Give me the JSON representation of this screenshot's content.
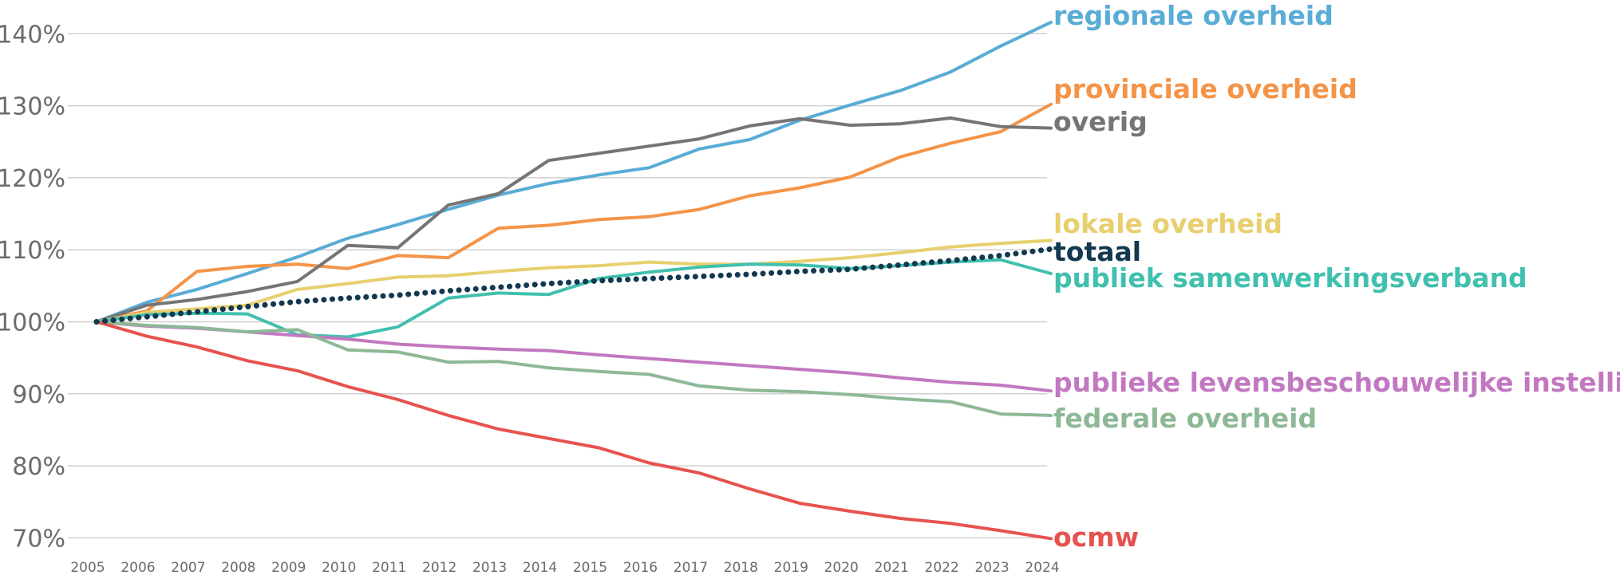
{
  "chart_data": {
    "type": "line",
    "title": "",
    "xlabel": "",
    "ylabel": "",
    "ylim": [
      70,
      140
    ],
    "yticks": [
      {
        "value": 70,
        "label": "70%"
      },
      {
        "value": 80,
        "label": "80%"
      },
      {
        "value": 90,
        "label": "90%"
      },
      {
        "value": 100,
        "label": "100%"
      },
      {
        "value": 110,
        "label": "110%"
      },
      {
        "value": 120,
        "label": "120%"
      },
      {
        "value": 130,
        "label": "130%"
      },
      {
        "value": 140,
        "label": "140%"
      }
    ],
    "xticks": [
      "2005",
      "2006",
      "2007",
      "2008",
      "2009",
      "2010",
      "2011",
      "2012",
      "2013",
      "2014",
      "2015",
      "2016",
      "2017",
      "2018",
      "2019",
      "2020",
      "2021",
      "2022",
      "2023",
      "2024"
    ],
    "series": [
      {
        "name": "regionale overheid",
        "color": "#58acd5",
        "dotted": false,
        "values": [
          100,
          102.7,
          104.5,
          106.7,
          109,
          111.6,
          113.5,
          115.6,
          117.6,
          119.2,
          120.4,
          121.4,
          124,
          125.3,
          128,
          130.1,
          132.1,
          134.7,
          138.3,
          141.6
        ]
      },
      {
        "name": "provinciale overheid",
        "color": "#f49448",
        "dotted": false,
        "values": [
          100,
          101.5,
          107,
          107.7,
          108,
          107.4,
          109.2,
          108.9,
          113,
          113.4,
          114.2,
          114.6,
          115.6,
          117.5,
          118.6,
          120.1,
          122.9,
          124.8,
          126.4,
          130.2
        ]
      },
      {
        "name": "overig",
        "color": "#757575",
        "dotted": false,
        "values": [
          100,
          102.3,
          103.1,
          104.2,
          105.6,
          110.6,
          110.3,
          116.2,
          117.8,
          122.4,
          123.4,
          124.4,
          125.4,
          127.2,
          128.2,
          127.3,
          127.5,
          128.3,
          127.1,
          126.9
        ]
      },
      {
        "name": "lokale overheid",
        "color": "#e8cf6e",
        "dotted": false,
        "values": [
          100,
          101.3,
          101.8,
          102.3,
          104.5,
          105.3,
          106.2,
          106.4,
          107,
          107.5,
          107.8,
          108.3,
          108,
          108,
          108.4,
          108.9,
          109.6,
          110.4,
          110.9,
          111.3
        ]
      },
      {
        "name": "totaal",
        "color": "#12394f",
        "dotted": true,
        "values": [
          100,
          100.7,
          101.4,
          102.1,
          102.8,
          103.3,
          103.7,
          104.3,
          104.8,
          105.3,
          105.7,
          106,
          106.3,
          106.6,
          107,
          107.3,
          107.9,
          108.5,
          109.2,
          110.1
        ]
      },
      {
        "name": "publiek samenwerkingsverband",
        "color": "#41c0ae",
        "dotted": false,
        "values": [
          100,
          101,
          101.2,
          101.1,
          98.2,
          97.9,
          99.3,
          103.3,
          104,
          103.8,
          106,
          106.9,
          107.6,
          108,
          107.9,
          107.4,
          107.8,
          108.3,
          108.6,
          106.7
        ]
      },
      {
        "name": "publieke levensbeschouwelijke instelling",
        "color": "#c278c0",
        "dotted": false,
        "values": [
          100,
          99.4,
          99.1,
          98.6,
          98.1,
          97.6,
          96.9,
          96.5,
          96.2,
          96,
          95.4,
          94.9,
          94.4,
          93.9,
          93.4,
          92.9,
          92.2,
          91.6,
          91.2,
          90.4
        ]
      },
      {
        "name": "federale overheid",
        "color": "#8db896",
        "dotted": false,
        "values": [
          100,
          99.5,
          99.2,
          98.6,
          98.9,
          96.1,
          95.8,
          94.4,
          94.5,
          93.6,
          93.1,
          92.7,
          91.1,
          90.5,
          90.3,
          89.9,
          89.3,
          88.9,
          87.2,
          87
        ]
      },
      {
        "name": "ocmw",
        "color": "#e6534f",
        "dotted": false,
        "values": [
          100,
          98,
          96.5,
          94.6,
          93.2,
          91,
          89.2,
          87,
          85.1,
          83.8,
          82.5,
          80.4,
          79,
          76.8,
          74.8,
          73.7,
          72.7,
          72,
          71,
          69.9
        ]
      }
    ]
  }
}
